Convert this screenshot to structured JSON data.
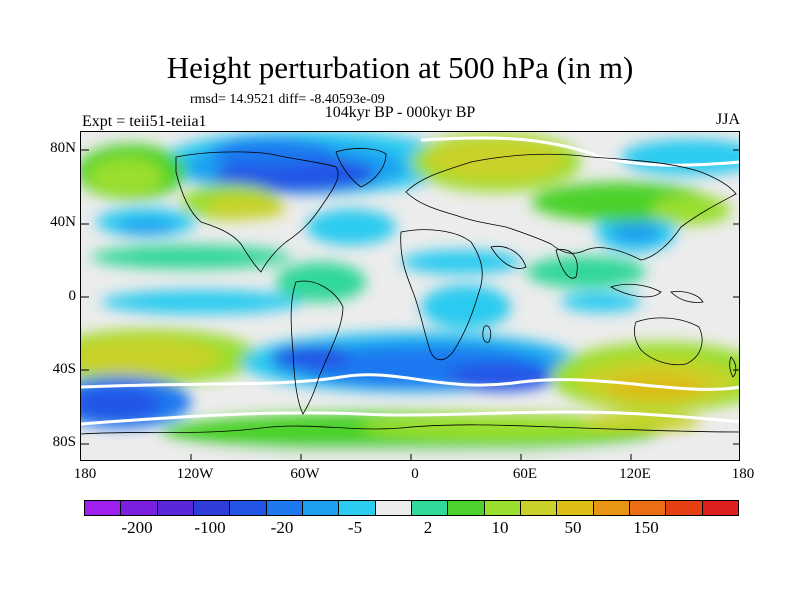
{
  "title": "Height perturbation at 500 hPa (in m)",
  "subtitle": "rmsd= 14.9521 diff= -8.40593e-09",
  "period": "104kyr BP - 000kyr BP",
  "left_label": "Expt = teii51-teiia1",
  "right_label": "JJA",
  "y_ticks": [
    "80N",
    "40N",
    "0",
    "40S",
    "80S"
  ],
  "x_ticks": [
    "180",
    "120W",
    "60W",
    "0",
    "60E",
    "120E",
    "180"
  ],
  "colorbar": {
    "colors": [
      "#a020f0",
      "#7a1ee0",
      "#5a28d8",
      "#2f3cd8",
      "#2255e6",
      "#1e78f0",
      "#1ea0f0",
      "#2ccbf0",
      "#ececec",
      "#32d79a",
      "#4bd22c",
      "#9ade2e",
      "#c8d22a",
      "#dcbe14",
      "#e69614",
      "#ec6e14",
      "#e64014",
      "#dc2020"
    ],
    "labels": [
      "-200",
      "-100",
      "-20",
      "-5",
      "2",
      "10",
      "50",
      "150"
    ]
  },
  "chart_data": {
    "type": "heatmap",
    "title": "Height perturbation at 500 hPa (in m)",
    "variable": "500 hPa geopotential height perturbation",
    "units": "m",
    "season": "JJA",
    "experiment": "teii51-teiia1",
    "period": "104kyr BP - 000kyr BP",
    "rmsd": 14.9521,
    "diff": -8.40593e-09,
    "xlim": [
      -180,
      180
    ],
    "ylim": [
      -90,
      90
    ],
    "x_ticks": [
      -180,
      -120,
      -60,
      0,
      60,
      120,
      180
    ],
    "y_ticks": [
      80,
      40,
      0,
      -40,
      -80
    ],
    "contour_levels": [
      -200,
      -100,
      -20,
      -5,
      2,
      10,
      50,
      150
    ],
    "features": [
      {
        "type": "negative",
        "lon": [
          -120,
          -20
        ],
        "lat": [
          55,
          85
        ],
        "level": "-20"
      },
      {
        "type": "positive",
        "lon": [
          0,
          60
        ],
        "lat": [
          60,
          85
        ],
        "level": "10"
      },
      {
        "type": "positive",
        "lon": [
          10,
          55
        ],
        "lat": [
          65,
          80
        ],
        "level": "50"
      },
      {
        "type": "negative",
        "lon": [
          90,
          180
        ],
        "lat": [
          65,
          85
        ],
        "level": "-5"
      },
      {
        "type": "positive",
        "lon": [
          -180,
          -110
        ],
        "lat": [
          -55,
          -30
        ],
        "level": "50"
      },
      {
        "type": "negative",
        "lon": [
          -80,
          60
        ],
        "lat": [
          -60,
          -30
        ],
        "level": "-20"
      },
      {
        "type": "positive",
        "lon": [
          80,
          180
        ],
        "lat": [
          -65,
          -35
        ],
        "level": "50"
      },
      {
        "type": "positive",
        "lon": [
          -40,
          100
        ],
        "lat": [
          -80,
          -62
        ],
        "level": "10"
      },
      {
        "type": "negative",
        "lon": [
          -180,
          -130
        ],
        "lat": [
          -72,
          -55
        ],
        "level": "-20"
      }
    ]
  }
}
